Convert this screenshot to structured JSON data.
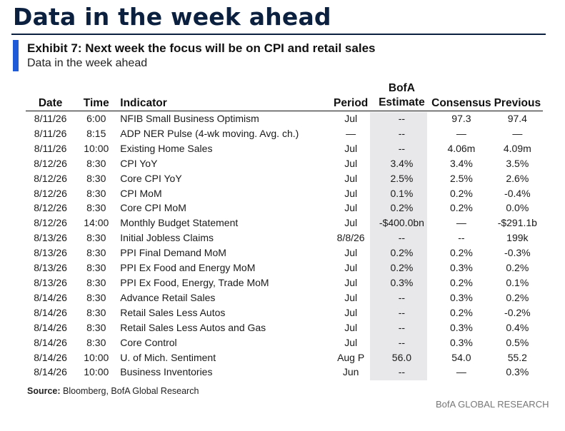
{
  "page": {
    "title": "Data in the week ahead",
    "exhibit_title": "Exhibit 7: Next week the focus will be on CPI and retail sales",
    "exhibit_subtitle": "Data in the week ahead",
    "source_label": "Source:",
    "source_text": "Bloomberg, BofA Global Research",
    "brand": "BofA GLOBAL RESEARCH",
    "accent_color": "#1f5bd6",
    "title_color": "#0b1f3f",
    "highlight_column_color": "#e8e8ea"
  },
  "table": {
    "headers": {
      "date": "Date",
      "time": "Time",
      "indicator": "Indicator",
      "period": "Period",
      "bofa_line1": "BofA",
      "bofa_line2": "Estimate",
      "consensus": "Consensus",
      "previous": "Previous"
    },
    "rows": [
      {
        "date": "8/11/26",
        "time": "6:00",
        "indicator": "NFIB Small Business Optimism",
        "period": "Jul",
        "bofa": "--",
        "consensus": "97.3",
        "previous": "97.4"
      },
      {
        "date": "8/11/26",
        "time": "8:15",
        "indicator": "ADP NER Pulse (4-wk moving. Avg. ch.)",
        "period": "—",
        "bofa": "--",
        "consensus": "—",
        "previous": "—"
      },
      {
        "date": "8/11/26",
        "time": "10:00",
        "indicator": "Existing Home Sales",
        "period": "Jul",
        "bofa": "--",
        "consensus": "4.06m",
        "previous": "4.09m"
      },
      {
        "date": "8/12/26",
        "time": "8:30",
        "indicator": "CPI YoY",
        "period": "Jul",
        "bofa": "3.4%",
        "consensus": "3.4%",
        "previous": "3.5%"
      },
      {
        "date": "8/12/26",
        "time": "8:30",
        "indicator": "Core CPI YoY",
        "period": "Jul",
        "bofa": "2.5%",
        "consensus": "2.5%",
        "previous": "2.6%"
      },
      {
        "date": "8/12/26",
        "time": "8:30",
        "indicator": "CPI MoM",
        "period": "Jul",
        "bofa": "0.1%",
        "consensus": "0.2%",
        "previous": "-0.4%"
      },
      {
        "date": "8/12/26",
        "time": "8:30",
        "indicator": "Core CPI MoM",
        "period": "Jul",
        "bofa": "0.2%",
        "consensus": "0.2%",
        "previous": "0.0%"
      },
      {
        "date": "8/12/26",
        "time": "14:00",
        "indicator": "Monthly Budget Statement",
        "period": "Jul",
        "bofa": "-$400.0bn",
        "consensus": "—",
        "previous": "-$291.1b"
      },
      {
        "date": "8/13/26",
        "time": "8:30",
        "indicator": "Initial Jobless Claims",
        "period": "8/8/26",
        "bofa": "--",
        "consensus": "--",
        "previous": "199k"
      },
      {
        "date": "8/13/26",
        "time": "8:30",
        "indicator": "PPI Final Demand MoM",
        "period": "Jul",
        "bofa": "0.2%",
        "consensus": "0.2%",
        "previous": "-0.3%"
      },
      {
        "date": "8/13/26",
        "time": "8:30",
        "indicator": "PPI Ex Food and Energy MoM",
        "period": "Jul",
        "bofa": "0.2%",
        "consensus": "0.3%",
        "previous": "0.2%"
      },
      {
        "date": "8/13/26",
        "time": "8:30",
        "indicator": "PPI Ex Food, Energy, Trade MoM",
        "period": "Jul",
        "bofa": "0.3%",
        "consensus": "0.2%",
        "previous": "0.1%"
      },
      {
        "date": "8/14/26",
        "time": "8:30",
        "indicator": "Advance Retail Sales",
        "period": "Jul",
        "bofa": "--",
        "consensus": "0.3%",
        "previous": "0.2%"
      },
      {
        "date": "8/14/26",
        "time": "8:30",
        "indicator": "Retail Sales Less Autos",
        "period": "Jul",
        "bofa": "--",
        "consensus": "0.2%",
        "previous": "-0.2%"
      },
      {
        "date": "8/14/26",
        "time": "8:30",
        "indicator": "Retail Sales Less Autos and Gas",
        "period": "Jul",
        "bofa": "--",
        "consensus": "0.3%",
        "previous": "0.4%"
      },
      {
        "date": "8/14/26",
        "time": "8:30",
        "indicator": "Core Control",
        "period": "Jul",
        "bofa": "--",
        "consensus": "0.3%",
        "previous": "0.5%"
      },
      {
        "date": "8/14/26",
        "time": "10:00",
        "indicator": "U. of Mich. Sentiment",
        "period": "Aug P",
        "bofa": "56.0",
        "consensus": "54.0",
        "previous": "55.2"
      },
      {
        "date": "8/14/26",
        "time": "10:00",
        "indicator": "Business Inventories",
        "period": "Jun",
        "bofa": "--",
        "consensus": "—",
        "previous": "0.3%"
      }
    ]
  }
}
